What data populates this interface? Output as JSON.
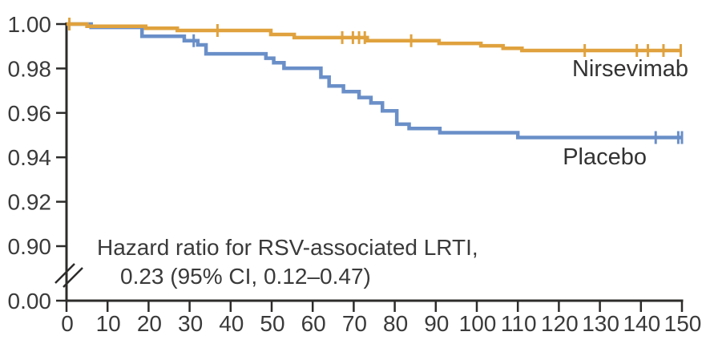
{
  "chart_data": {
    "type": "line",
    "variant": "kaplan-meier-step",
    "title": "",
    "xlabel": "",
    "ylabel": "",
    "xlim": [
      0,
      150
    ],
    "ylim_display": [
      0.9,
      1.0
    ],
    "x_ticks": [
      0,
      10,
      20,
      30,
      40,
      50,
      60,
      70,
      80,
      90,
      100,
      110,
      120,
      130,
      140,
      150
    ],
    "y_ticks": [
      1.0,
      0.98,
      0.96,
      0.94,
      0.92,
      0.9
    ],
    "y_axis_break": true,
    "y_bottom_tick_label": "0.00",
    "grid": false,
    "legend_position": "inline-right",
    "axis_color": "#2d2c2b",
    "text_color": "#3a3a3a",
    "series": [
      {
        "name": "Placebo",
        "color": "#6A8FC8",
        "points": [
          [
            0,
            1.0
          ],
          [
            6,
            0.9985
          ],
          [
            18.4,
            0.9945
          ],
          [
            28.7,
            0.9925
          ],
          [
            32,
            0.9906
          ],
          [
            34,
            0.9866
          ],
          [
            48.6,
            0.9846
          ],
          [
            50.5,
            0.9826
          ],
          [
            53,
            0.9801
          ],
          [
            62,
            0.9761
          ],
          [
            64,
            0.9721
          ],
          [
            67.5,
            0.9696
          ],
          [
            71.3,
            0.9669
          ],
          [
            74.2,
            0.9645
          ],
          [
            77,
            0.9609
          ],
          [
            80.5,
            0.9549
          ],
          [
            83.5,
            0.953
          ],
          [
            91,
            0.9511
          ],
          [
            110,
            0.9489
          ]
        ],
        "end_x": 150,
        "censor_times": [
          31,
          143.6,
          149.1,
          150
        ]
      },
      {
        "name": "Nirsevimab",
        "color": "#E0A23E",
        "points": [
          [
            0,
            1.0
          ],
          [
            5,
            0.999
          ],
          [
            19.3,
            0.9981
          ],
          [
            27,
            0.9971
          ],
          [
            49.8,
            0.9953
          ],
          [
            55.5,
            0.9939
          ],
          [
            73.3,
            0.9925
          ],
          [
            90.8,
            0.9913
          ],
          [
            101,
            0.9902
          ],
          [
            106.4,
            0.9891
          ],
          [
            111,
            0.9881
          ]
        ],
        "end_x": 150,
        "censor_times": [
          0.7,
          36.8,
          67.2,
          69.8,
          71.3,
          72.7,
          84,
          126.3,
          139,
          141.7,
          145.5,
          149.7
        ]
      }
    ],
    "annotation": {
      "line1": "Hazard ratio for RSV-associated LRTI,",
      "line2": "0.23 (95% CI, 0.12–0.47)"
    }
  }
}
